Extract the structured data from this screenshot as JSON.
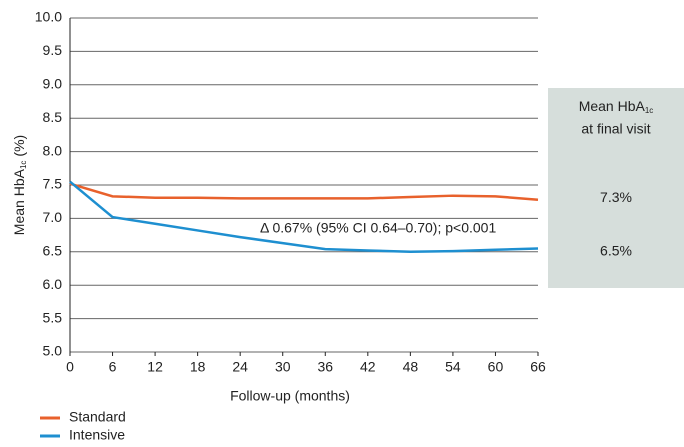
{
  "chart_data": {
    "type": "line",
    "ylabel": {
      "main": "Mean HbA",
      "sub": "1c",
      "unit": "(%)"
    },
    "xlabel": "Follow-up (months)",
    "x": [
      0,
      6,
      12,
      18,
      24,
      30,
      36,
      42,
      48,
      54,
      60,
      66
    ],
    "series": [
      {
        "name": "Standard",
        "color": "#e8612c",
        "values": [
          7.52,
          7.33,
          7.31,
          7.31,
          7.3,
          7.3,
          7.3,
          7.3,
          7.32,
          7.34,
          7.33,
          7.28
        ]
      },
      {
        "name": "Intensive",
        "color": "#1e8fd0",
        "values": [
          7.55,
          7.02,
          6.92,
          6.82,
          6.72,
          6.63,
          6.54,
          6.52,
          6.5,
          6.51,
          6.53,
          6.55
        ]
      }
    ],
    "xlim": [
      0,
      66
    ],
    "xticks": [
      0,
      6,
      12,
      18,
      24,
      30,
      36,
      42,
      48,
      54,
      60,
      66
    ],
    "ylim": [
      5,
      10
    ],
    "yticks": [
      {
        "value": 5,
        "label": "5.0"
      },
      5.5,
      {
        "value": 6,
        "label": "6.0"
      },
      6.5,
      {
        "value": 7,
        "label": "7.0"
      },
      7.5,
      {
        "value": 8,
        "label": "8.0"
      },
      8.5,
      {
        "value": 9,
        "label": "9.0"
      },
      9.5,
      {
        "value": 10,
        "label": "10.0"
      }
    ],
    "grid": true,
    "annotation": "Δ 0.67% (95% CI 0.64–0.70); p<0.001",
    "final_visit": {
      "title": {
        "main": "Mean HbA",
        "sub": "1c",
        "rest": "at final visit"
      },
      "values": [
        7.3,
        6.5
      ],
      "value_labels": [
        "7.3%",
        "6.5%"
      ]
    },
    "legend": "bottom-left"
  }
}
